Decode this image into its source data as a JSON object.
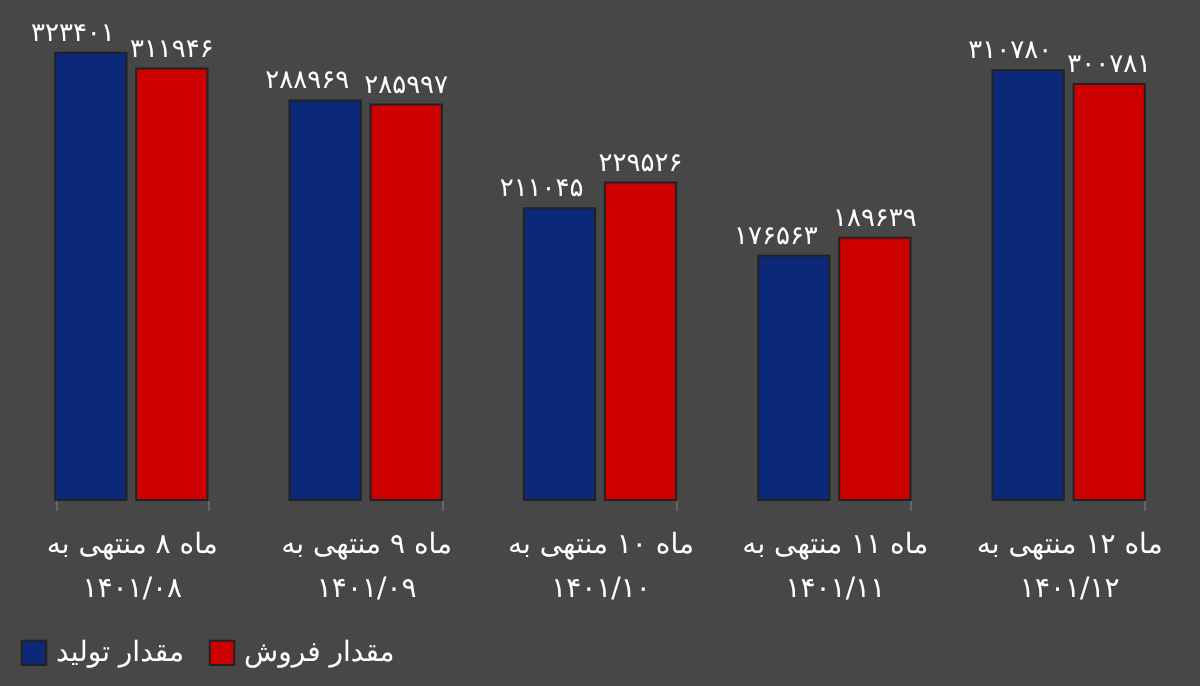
{
  "chart_data": {
    "type": "bar",
    "categories": [
      "ماه ۸ منتهی به\n۱۴۰۱/۰۸",
      "ماه ۹ منتهی به\n۱۴۰۱/۰۹",
      "ماه ۱۰ منتهی به\n۱۴۰۱/۱۰",
      "ماه ۱۱ منتهی به\n۱۴۰۱/۱۱",
      "ماه ۱۲ منتهی به\n۱۴۰۱/۱۲"
    ],
    "series": [
      {
        "name": "مقدار تولید",
        "color": "#0c2878",
        "values": [
          323401,
          288969,
          211045,
          176563,
          310780
        ],
        "value_labels": [
          "۳۲۳۴۰۱",
          "۲۸۸۹۶۹",
          "۲۱۱۰۴۵",
          "۱۷۶۵۶۳",
          "۳۱۰۷۸۰"
        ]
      },
      {
        "name": "مقدار فروش",
        "color": "#cc0000",
        "values": [
          311946,
          285997,
          229526,
          189639,
          300781
        ],
        "value_labels": [
          "۳۱۱۹۴۶",
          "۲۸۵۹۹۷",
          "۲۲۹۵۲۶",
          "۱۸۹۶۳۹",
          "۳۰۰۷۸۱"
        ]
      }
    ],
    "legend": "bottom"
  }
}
